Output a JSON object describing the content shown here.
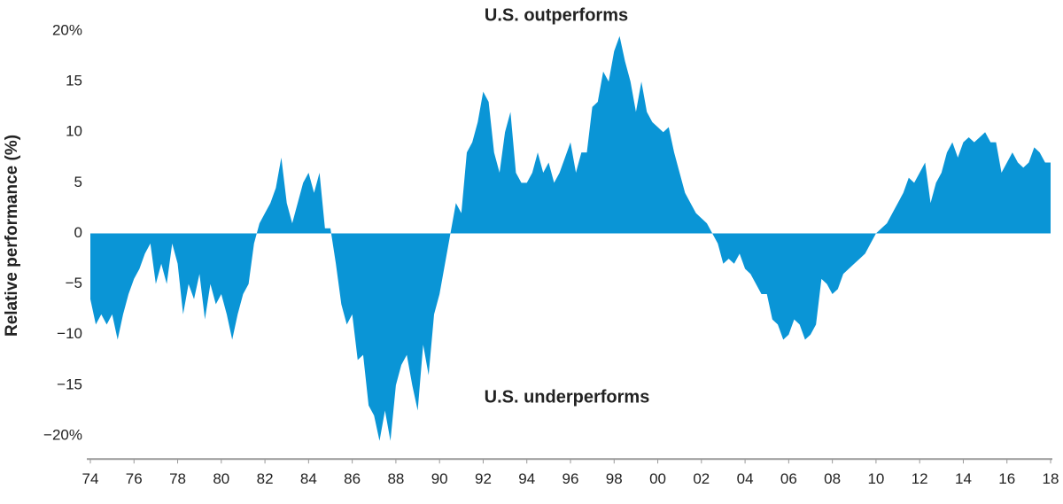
{
  "chart_data": {
    "type": "area",
    "annotations": [
      "U.S. outperforms",
      "U.S. underperforms"
    ],
    "y_label": "Relative performance (%)",
    "color": "#0a95d6",
    "xlim": [
      1974,
      2018
    ],
    "ylim": [
      -22.3,
      20.5
    ],
    "xticks": [
      {
        "value": 1974,
        "label": "74"
      },
      {
        "value": 1976,
        "label": "76"
      },
      {
        "value": 1978,
        "label": "78"
      },
      {
        "value": 1980,
        "label": "80"
      },
      {
        "value": 1982,
        "label": "82"
      },
      {
        "value": 1984,
        "label": "84"
      },
      {
        "value": 1986,
        "label": "86"
      },
      {
        "value": 1988,
        "label": "88"
      },
      {
        "value": 1990,
        "label": "90"
      },
      {
        "value": 1992,
        "label": "92"
      },
      {
        "value": 1994,
        "label": "94"
      },
      {
        "value": 1996,
        "label": "96"
      },
      {
        "value": 1998,
        "label": "98"
      },
      {
        "value": 2000,
        "label": "00"
      },
      {
        "value": 2002,
        "label": "02"
      },
      {
        "value": 2004,
        "label": "04"
      },
      {
        "value": 2006,
        "label": "06"
      },
      {
        "value": 2008,
        "label": "08"
      },
      {
        "value": 2010,
        "label": "10"
      },
      {
        "value": 2012,
        "label": "12"
      },
      {
        "value": 2014,
        "label": "14"
      },
      {
        "value": 2016,
        "label": "16"
      },
      {
        "value": 2018,
        "label": "18"
      }
    ],
    "yticks": [
      {
        "value": 20,
        "label": "20%"
      },
      15,
      10,
      5,
      0,
      {
        "value": -5,
        "label": "−5"
      },
      {
        "value": -10,
        "label": "−10"
      },
      {
        "value": -15,
        "label": "−15"
      },
      {
        "value": -20,
        "label": "−20%"
      }
    ],
    "x": [
      1974,
      1974.25,
      1974.5,
      1974.75,
      1975,
      1975.25,
      1975.5,
      1975.75,
      1976,
      1976.25,
      1976.5,
      1976.75,
      1977,
      1977.25,
      1977.5,
      1977.75,
      1978,
      1978.25,
      1978.5,
      1978.75,
      1979,
      1979.25,
      1979.5,
      1979.75,
      1980,
      1980.25,
      1980.5,
      1980.75,
      1981,
      1981.25,
      1981.5,
      1981.75,
      1982,
      1982.25,
      1982.5,
      1982.75,
      1983,
      1983.25,
      1983.5,
      1983.75,
      1984,
      1984.25,
      1984.5,
      1984.75,
      1985,
      1985.25,
      1985.5,
      1985.75,
      1986,
      1986.25,
      1986.5,
      1986.75,
      1987,
      1987.25,
      1987.5,
      1987.75,
      1988,
      1988.25,
      1988.5,
      1988.75,
      1989,
      1989.25,
      1989.5,
      1989.75,
      1990,
      1990.25,
      1990.5,
      1990.75,
      1991,
      1991.25,
      1991.5,
      1991.75,
      1992,
      1992.25,
      1992.5,
      1992.75,
      1993,
      1993.25,
      1993.5,
      1993.75,
      1994,
      1994.25,
      1994.5,
      1994.75,
      1995,
      1995.25,
      1995.5,
      1995.75,
      1996,
      1996.25,
      1996.5,
      1996.75,
      1997,
      1997.25,
      1997.5,
      1997.75,
      1998,
      1998.25,
      1998.5,
      1998.75,
      1999,
      1999.25,
      1999.5,
      1999.75,
      2000,
      2000.25,
      2000.5,
      2000.75,
      2001,
      2001.25,
      2001.5,
      2001.75,
      2002,
      2002.25,
      2002.5,
      2002.75,
      2003,
      2003.25,
      2003.5,
      2003.75,
      2004,
      2004.25,
      2004.5,
      2004.75,
      2005,
      2005.25,
      2005.5,
      2005.75,
      2006,
      2006.25,
      2006.5,
      2006.75,
      2007,
      2007.25,
      2007.5,
      2007.75,
      2008,
      2008.25,
      2008.5,
      2008.75,
      2009,
      2009.25,
      2009.5,
      2009.75,
      2010,
      2010.25,
      2010.5,
      2010.75,
      2011,
      2011.25,
      2011.5,
      2011.75,
      2012,
      2012.25,
      2012.5,
      2012.75,
      2013,
      2013.25,
      2013.5,
      2013.75,
      2014,
      2014.25,
      2014.5,
      2014.75,
      2015,
      2015.25,
      2015.5,
      2015.75,
      2016,
      2016.25,
      2016.5,
      2016.75,
      2017,
      2017.25,
      2017.5,
      2017.75,
      2018
    ],
    "values": [
      -6.5,
      -9,
      -8,
      -9,
      -8,
      -10.5,
      -8,
      -6,
      -4.5,
      -3.5,
      -2,
      -1,
      -5,
      -3,
      -5,
      -1,
      -3,
      -8,
      -5,
      -6.5,
      -4,
      -8.5,
      -5,
      -7,
      -6,
      -8,
      -10.5,
      -8,
      -6,
      -5,
      -1,
      1,
      2,
      3,
      4.5,
      7.5,
      3,
      1,
      3,
      5,
      6,
      4,
      6,
      0.5,
      0.5,
      -3,
      -7,
      -9,
      -8,
      -12.5,
      -12,
      -17,
      -18,
      -20.5,
      -17.5,
      -20.5,
      -15,
      -13,
      -12,
      -15,
      -17.5,
      -11,
      -14,
      -8,
      -6,
      -3,
      0,
      3,
      2,
      8,
      9,
      11,
      14,
      13,
      8,
      6,
      10,
      12,
      6,
      5,
      5,
      6,
      8,
      6,
      7,
      5,
      6,
      7.5,
      9,
      6,
      8,
      8,
      12.5,
      13,
      16,
      15,
      18,
      19.5,
      17,
      15,
      12,
      15,
      12,
      11,
      10.5,
      10,
      10.5,
      8,
      6,
      4,
      3,
      2,
      1.5,
      1,
      0,
      -1,
      -3,
      -2.5,
      -3,
      -2,
      -3.5,
      -4,
      -5,
      -6,
      -6,
      -8.5,
      -9,
      -10.5,
      -10,
      -8.5,
      -9,
      -10.5,
      -10,
      -9,
      -4.5,
      -5,
      -6,
      -5.5,
      -4,
      -3.5,
      -3,
      -2.5,
      -2,
      -1,
      0,
      0.5,
      1,
      2,
      3,
      4,
      5.5,
      5,
      6,
      7,
      3,
      5,
      6,
      8,
      9,
      7.5,
      9,
      9.5,
      9,
      9.5,
      10,
      9,
      9,
      6,
      7,
      8,
      7,
      6.5,
      7,
      8.5,
      8,
      7,
      7
    ]
  }
}
